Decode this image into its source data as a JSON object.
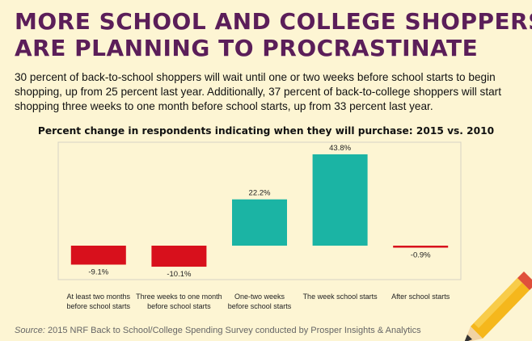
{
  "header": {
    "title_line1": "MORE SCHOOL AND COLLEGE SHOPPERS",
    "title_line2": "ARE PLANNING TO PROCRASTINATE",
    "intro": "30 percent of back-to-school shoppers will wait until one or two weeks before school starts to begin shopping, up from 25 percent last year. Additionally, 37 percent of back-to-college shoppers will start shopping three weeks to one month before school starts, up from 33 percent last year."
  },
  "chart_data": {
    "type": "bar",
    "title": "Percent change in respondents indicating when they will purchase: 2015 vs. 2010",
    "categories": [
      [
        "At least two months",
        "before school starts"
      ],
      [
        "Three weeks to one month",
        "before school starts"
      ],
      [
        "One-two weeks",
        "before school starts"
      ],
      [
        "The week school starts"
      ],
      [
        "After school starts"
      ]
    ],
    "values": [
      -9.1,
      -10.1,
      22.2,
      43.8,
      -0.9
    ],
    "labels": [
      "-9.1%",
      "-10.1%",
      "22.2%",
      "43.8%",
      "-0.9%"
    ],
    "ylim": [
      -15,
      45
    ],
    "colors": {
      "negative": "#d8101c",
      "positive": "#1bb4a4"
    }
  },
  "footer": {
    "source_label": "Source:",
    "source_text": "2015 NRF Back to School/College Spending Survey conducted by Prosper Insights & Analytics"
  }
}
